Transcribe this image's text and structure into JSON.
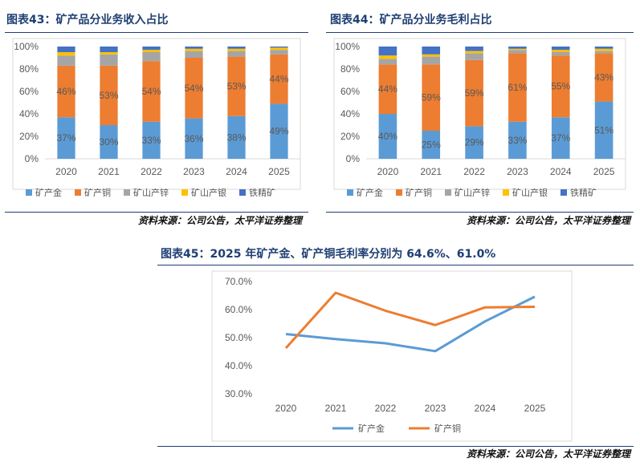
{
  "chart_data": [
    {
      "type": "bar",
      "stacked": true,
      "title": "图表43：矿产品分业务收入占比",
      "categories": [
        "2020",
        "2021",
        "2022",
        "2023",
        "2024",
        "2025"
      ],
      "ylim": [
        0,
        100
      ],
      "yticks": [
        "0%",
        "20%",
        "40%",
        "60%",
        "80%",
        "100%"
      ],
      "series": [
        {
          "name": "矿产金",
          "color": "#5b9bd5",
          "values": [
            37,
            30,
            33,
            36,
            38,
            49
          ],
          "labels": [
            "37%",
            "30%",
            "33%",
            "36%",
            "38%",
            "49%"
          ]
        },
        {
          "name": "矿产铜",
          "color": "#ed7d31",
          "values": [
            46,
            53,
            54,
            54,
            53,
            44
          ],
          "labels": [
            "46%",
            "53%",
            "54%",
            "54%",
            "53%",
            "44%"
          ]
        },
        {
          "name": "矿山产锌",
          "color": "#a5a5a5",
          "values": [
            9,
            10,
            8,
            6,
            5,
            4
          ],
          "labels": [
            "",
            "",
            "",
            "",
            "",
            ""
          ]
        },
        {
          "name": "矿山产银",
          "color": "#ffc000",
          "values": [
            3,
            2,
            2,
            2,
            2,
            2
          ],
          "labels": [
            "",
            "",
            "",
            "",
            "",
            ""
          ]
        },
        {
          "name": "铁精矿",
          "color": "#4472c4",
          "values": [
            5,
            5,
            3,
            2,
            2,
            1
          ],
          "labels": [
            "",
            "",
            "",
            "",
            "",
            ""
          ]
        }
      ],
      "legend_position": "bottom",
      "source": "资料来源：公司公告，太平洋证券整理"
    },
    {
      "type": "bar",
      "stacked": true,
      "title": "图表44：矿产品分业务毛利占比",
      "categories": [
        "2020",
        "2021",
        "2022",
        "2023",
        "2024",
        "2025"
      ],
      "ylim": [
        0,
        100
      ],
      "yticks": [
        "0%",
        "20%",
        "40%",
        "60%",
        "80%",
        "100%"
      ],
      "series": [
        {
          "name": "矿产金",
          "color": "#5b9bd5",
          "values": [
            40,
            25,
            29,
            33,
            37,
            51
          ],
          "labels": [
            "40%",
            "25%",
            "29%",
            "33%",
            "37%",
            "51%"
          ]
        },
        {
          "name": "矿产铜",
          "color": "#ed7d31",
          "values": [
            44,
            59,
            59,
            61,
            55,
            43
          ],
          "labels": [
            "44%",
            "59%",
            "59%",
            "61%",
            "55%",
            "43%"
          ]
        },
        {
          "name": "矿山产锌",
          "color": "#a5a5a5",
          "values": [
            5,
            7,
            6,
            3,
            3,
            2
          ],
          "labels": [
            "",
            "",
            "",
            "",
            "",
            ""
          ]
        },
        {
          "name": "矿山产银",
          "color": "#ffc000",
          "values": [
            3,
            2,
            2,
            1,
            2,
            2
          ],
          "labels": [
            "",
            "",
            "",
            "",
            "",
            ""
          ]
        },
        {
          "name": "铁精矿",
          "color": "#4472c4",
          "values": [
            8,
            7,
            4,
            2,
            3,
            2
          ],
          "labels": [
            "",
            "",
            "",
            "",
            "",
            ""
          ]
        }
      ],
      "legend_position": "bottom",
      "source": "资料来源：公司公告，太平洋证券整理"
    },
    {
      "type": "line",
      "title": "图表45：2025 年矿产金、矿产铜毛利率分别为 64.6%、61.0%",
      "categories": [
        "2020",
        "2021",
        "2022",
        "2023",
        "2024",
        "2025"
      ],
      "ylim": [
        30,
        70
      ],
      "yticks": [
        "30.0%",
        "40.0%",
        "50.0%",
        "60.0%",
        "70.0%"
      ],
      "series": [
        {
          "name": "矿产金",
          "color": "#5b9bd5",
          "values": [
            51.3,
            49.5,
            48.0,
            45.2,
            55.8,
            64.6
          ]
        },
        {
          "name": "矿产铜",
          "color": "#ed7d31",
          "values": [
            46.3,
            66.0,
            59.6,
            54.5,
            60.8,
            61.0
          ]
        }
      ],
      "legend_position": "bottom",
      "source": "资料来源：公司公告，太平洋证券整理"
    }
  ]
}
